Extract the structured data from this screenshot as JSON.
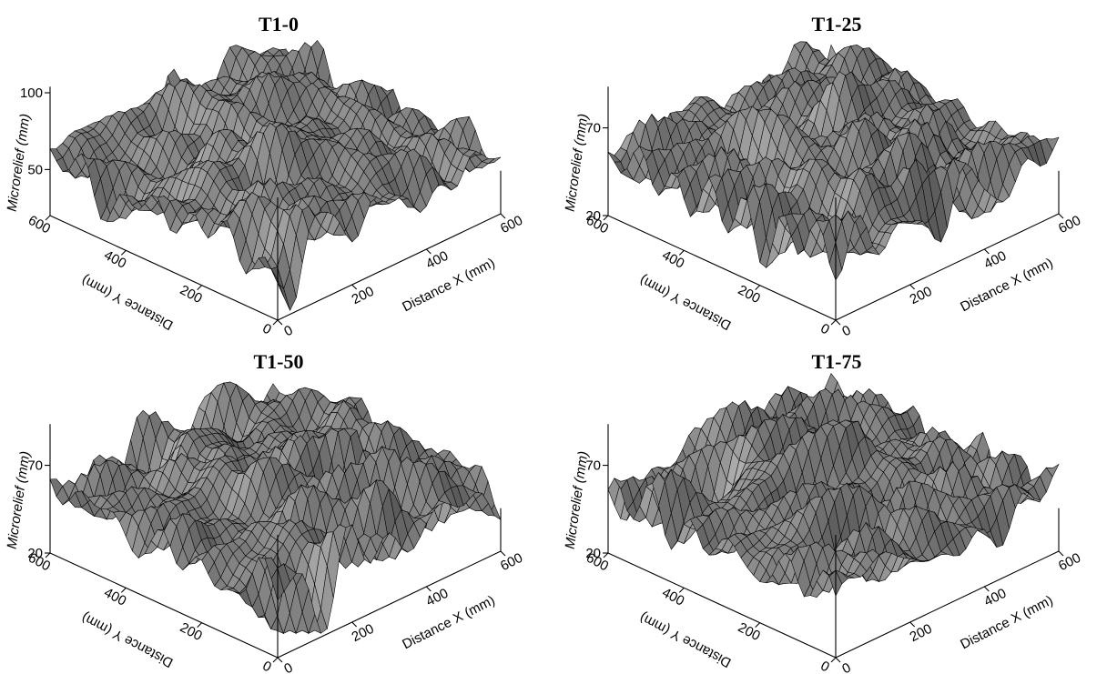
{
  "chart_data": [
    {
      "type": "surface",
      "title": "T1-0",
      "xlabel": "Distance X (mm)",
      "ylabel": "Distance Y (mm)",
      "zlabel": "Microrelief (mm)",
      "x_ticks": [
        "0",
        "200",
        "400",
        "600"
      ],
      "y_ticks": [
        "0",
        "200",
        "400",
        "600"
      ],
      "z_ticks": [
        "50",
        "100"
      ],
      "xlim": [
        0,
        600
      ],
      "ylim": [
        0,
        600
      ],
      "zlim": [
        20,
        100
      ],
      "grid": false,
      "colors": {
        "mesh_fill": "#808080",
        "mesh_line": "#000000"
      }
    },
    {
      "type": "surface",
      "title": "T1-25",
      "xlabel": "Distance X (mm)",
      "ylabel": "Distance Y (mm)",
      "zlabel": "Microrelief (mm)",
      "x_ticks": [
        "0",
        "200",
        "400",
        "600"
      ],
      "y_ticks": [
        "0",
        "200",
        "400",
        "600"
      ],
      "z_ticks": [
        "20",
        "70"
      ],
      "xlim": [
        0,
        600
      ],
      "ylim": [
        0,
        600
      ],
      "zlim": [
        20,
        90
      ],
      "grid": false,
      "colors": {
        "mesh_fill": "#808080",
        "mesh_line": "#000000"
      }
    },
    {
      "type": "surface",
      "title": "T1-50",
      "xlabel": "Distance X (mm)",
      "ylabel": "Distance Y (mm)",
      "zlabel": "Microrelief (mm)",
      "x_ticks": [
        "0",
        "200",
        "400",
        "600"
      ],
      "y_ticks": [
        "0",
        "200",
        "400",
        "600"
      ],
      "z_ticks": [
        "20",
        "70"
      ],
      "xlim": [
        0,
        600
      ],
      "ylim": [
        0,
        600
      ],
      "zlim": [
        20,
        90
      ],
      "grid": false,
      "colors": {
        "mesh_fill": "#808080",
        "mesh_line": "#000000"
      }
    },
    {
      "type": "surface",
      "title": "T1-75",
      "xlabel": "Distance X (mm)",
      "ylabel": "Distance Y (mm)",
      "zlabel": "Microrelief (mm)",
      "x_ticks": [
        "0",
        "200",
        "400",
        "600"
      ],
      "y_ticks": [
        "0",
        "200",
        "400",
        "600"
      ],
      "z_ticks": [
        "20",
        "70"
      ],
      "xlim": [
        0,
        600
      ],
      "ylim": [
        0,
        600
      ],
      "zlim": [
        20,
        90
      ],
      "grid": false,
      "colors": {
        "mesh_fill": "#808080",
        "mesh_line": "#000000"
      }
    }
  ]
}
